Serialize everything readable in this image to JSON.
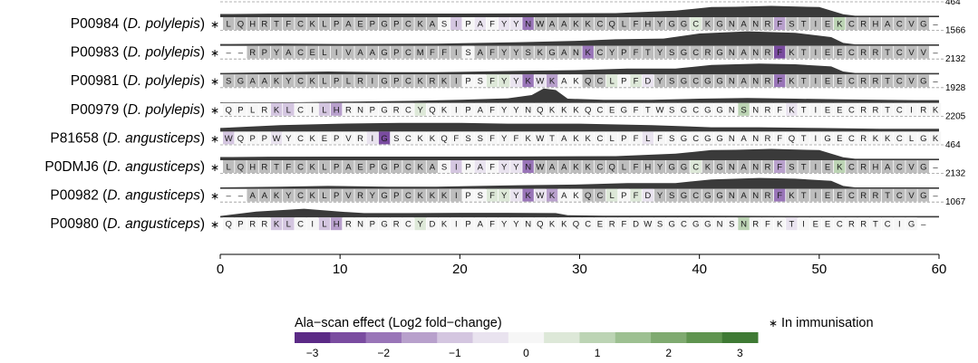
{
  "chart_data": {
    "type": "heatmap",
    "title": "",
    "xlabel": "",
    "ylabel": "",
    "xlim": [
      0,
      60
    ],
    "x_ticks": [
      "0",
      "10",
      "20",
      "30",
      "40",
      "50",
      "60"
    ],
    "rows": [
      {
        "id": "P00984",
        "species": "D. polylepis",
        "in_immunisation": true,
        "sequence": "LQHRTFCKLPAEPGPCKASIPAFYYNWAAKKCQLFHYGGCKGNANRFSTIEKCRHACVG-",
        "max_label": "464",
        "effects": [
          -0.1,
          -0.1,
          -0.1,
          -0.1,
          -0.1,
          -0.1,
          -0.1,
          -0.1,
          -0.1,
          -0.1,
          -0.1,
          -0.1,
          -0.1,
          -0.1,
          -0.1,
          -0.1,
          -0.1,
          -0.1,
          0,
          -0.8,
          0,
          -0.6,
          0,
          -0.4,
          -0.4,
          -1.8,
          -0.1,
          -0.1,
          -0.1,
          -0.1,
          -0.1,
          -0.1,
          -0.1,
          -0.1,
          -0.1,
          -0.1,
          -0.1,
          -0.1,
          -0.1,
          0.5,
          -0.1,
          -0.1,
          -0.1,
          -0.1,
          -0.1,
          -0.1,
          -1.5,
          -0.1,
          -0.1,
          -0.1,
          -0.1,
          1.1,
          -0.1,
          -0.1,
          -0.1,
          -0.1,
          -0.1,
          -0.1,
          -0.1,
          0
        ]
      },
      {
        "id": "P00983",
        "species": "D. polylepis",
        "in_immunisation": true,
        "sequence": "--RPYACELIVAAGPCMFFISAFYYSKGANKCYPFTYSGCRGNANRFKTIEECRRTCVV-",
        "max_label": "1566",
        "effects": [
          0,
          0,
          -0.1,
          -0.1,
          -0.1,
          -0.1,
          -0.1,
          -0.1,
          -0.1,
          -0.1,
          -0.1,
          -0.1,
          -0.1,
          -0.1,
          -0.1,
          -0.1,
          -0.1,
          -0.1,
          -0.1,
          -0.1,
          0,
          -0.1,
          -0.1,
          -0.1,
          -0.1,
          -0.1,
          -0.1,
          -0.1,
          -0.1,
          -0.1,
          -2.2,
          -0.1,
          -0.1,
          -0.1,
          -0.1,
          -0.1,
          -0.1,
          -0.1,
          -0.1,
          -0.1,
          -0.1,
          -0.1,
          -0.1,
          -0.1,
          -0.1,
          -0.1,
          -2.5,
          -0.1,
          -0.1,
          -0.1,
          -0.1,
          -0.1,
          -0.1,
          -0.1,
          -0.1,
          -0.1,
          -0.1,
          -0.1,
          -0.1,
          0
        ]
      },
      {
        "id": "P00981",
        "species": "D. polylepis",
        "in_immunisation": true,
        "sequence": "SGAAKYCKLPLRIGPCKRKIPSFYYKWKAKQCLPFDYSGCGGNANRFKTIEECRRTCVG-",
        "max_label": "2132",
        "effects": [
          -0.1,
          -0.1,
          -0.1,
          -0.1,
          -0.1,
          -0.1,
          -0.1,
          -0.1,
          -0.1,
          -0.1,
          -0.1,
          -0.1,
          -0.1,
          -0.1,
          -0.1,
          -0.1,
          -0.1,
          -0.1,
          -0.1,
          -0.1,
          0,
          0,
          0.5,
          0.5,
          -0.5,
          -1.8,
          -0.4,
          -1.6,
          0,
          0,
          -0.1,
          -0.1,
          0.3,
          0,
          0.4,
          -0.6,
          -0.1,
          -0.1,
          -0.1,
          -0.1,
          -0.1,
          -0.1,
          -0.1,
          -0.1,
          -0.1,
          -0.1,
          -2.0,
          -0.1,
          -0.1,
          -0.1,
          -0.1,
          -0.1,
          -0.1,
          -0.1,
          -0.1,
          -0.1,
          -0.1,
          -0.1,
          -0.1,
          0
        ]
      },
      {
        "id": "P00979",
        "species": "D. polylepis",
        "in_immunisation": true,
        "sequence": "QPLRKLCILHRNPGRCYQKIPAFYYNQKKKQCEGFTWSGCGGNSNRFKTIEECRRTCIRK",
        "max_label": "1928",
        "effects": [
          0,
          0,
          0,
          0,
          -1.0,
          -1.2,
          0,
          0,
          -1.0,
          -1.6,
          0,
          0,
          0,
          0,
          0,
          0,
          0.3,
          0,
          0,
          0,
          0,
          0,
          0,
          0,
          0,
          0,
          0,
          0,
          0,
          0,
          0,
          0,
          0,
          0,
          0,
          0,
          0,
          0,
          0,
          0,
          0,
          0,
          0,
          0.9,
          0,
          0,
          0,
          -0.7,
          0,
          0,
          0,
          0,
          0,
          0,
          0,
          0,
          0,
          0,
          0,
          0
        ]
      },
      {
        "id": "P81658",
        "species": "D. angusticeps",
        "in_immunisation": true,
        "sequence": "WQPPWYCKEPVRIGSCKKQFSSFYFKWTAKKCLPFLFSGCGGNANRFQTIGECRKKCLGK",
        "max_label": "2205",
        "effects": [
          -0.8,
          0,
          0,
          0,
          -0.4,
          -0.2,
          0,
          0,
          0,
          0,
          0,
          0,
          -0.4,
          -2.3,
          0,
          0,
          0,
          0,
          0,
          0,
          0,
          0,
          0,
          0,
          0,
          0,
          0,
          0,
          0,
          0,
          0,
          0,
          0,
          0,
          0,
          -0.3,
          0,
          0,
          0,
          0,
          0,
          0,
          0,
          0,
          0,
          0,
          0,
          0,
          0,
          0,
          0,
          0,
          0,
          0,
          0,
          0,
          0,
          0,
          0,
          0
        ]
      },
      {
        "id": "P0DMJ6",
        "species": "D. angusticeps",
        "in_immunisation": true,
        "sequence": "LQHRTFCKLPAEPGPCKASIPAFYYNWAAKKCQLFHYGGCKGNANRFSTIEKCRHACVG-",
        "max_label": "464",
        "effects": [
          -0.1,
          -0.1,
          -0.1,
          -0.1,
          -0.1,
          -0.1,
          -0.1,
          -0.1,
          -0.1,
          -0.1,
          -0.1,
          -0.1,
          -0.1,
          -0.1,
          -0.1,
          -0.1,
          -0.1,
          -0.1,
          0,
          -0.8,
          0,
          -0.6,
          0,
          -0.4,
          -0.4,
          -1.8,
          -0.1,
          -0.1,
          -0.1,
          -0.1,
          -0.1,
          -0.1,
          -0.1,
          -0.1,
          -0.1,
          -0.1,
          -0.1,
          -0.1,
          -0.1,
          0.5,
          -0.1,
          -0.1,
          -0.1,
          -0.1,
          -0.1,
          -0.1,
          -1.5,
          -0.1,
          -0.1,
          -0.1,
          -0.1,
          1.1,
          -0.1,
          -0.1,
          -0.1,
          -0.1,
          -0.1,
          -0.1,
          -0.1,
          0
        ]
      },
      {
        "id": "P00982",
        "species": "D. angusticeps",
        "in_immunisation": true,
        "sequence": "--AAKYCKLPVRYGPCKKKIPSFYYKWKAKQCLPFDYSGCGGNANRFKTIEECRRTCVG-",
        "max_label": "2132",
        "effects": [
          0,
          0,
          -0.1,
          -0.1,
          -0.1,
          -0.1,
          -0.1,
          -0.1,
          -0.1,
          -0.1,
          -0.1,
          -0.1,
          -0.1,
          -0.1,
          -0.1,
          -0.1,
          -0.1,
          -0.1,
          -0.1,
          -0.1,
          0,
          0,
          0.5,
          0.5,
          -0.5,
          -1.8,
          -0.4,
          -1.6,
          0,
          0,
          -0.1,
          -0.1,
          0.3,
          0,
          0.4,
          -0.6,
          -0.1,
          -0.1,
          -0.1,
          -0.1,
          -0.1,
          -0.1,
          -0.1,
          -0.1,
          -0.1,
          -0.1,
          -2.0,
          -0.1,
          -0.1,
          -0.1,
          -0.1,
          -0.1,
          -0.1,
          -0.1,
          -0.1,
          -0.1,
          -0.1,
          -0.1,
          -0.1,
          0
        ]
      },
      {
        "id": "P00980",
        "species": "D. angusticeps",
        "in_immunisation": true,
        "sequence": "QPRRKLCILHRNPGRCYDKIPAFYYNQKKQCERFDWSGCGGNSNRFKTIEECRRTCIG-",
        "max_label": "1067",
        "effects": [
          0,
          0,
          0,
          0,
          -1.0,
          -1.2,
          0,
          0,
          -1.0,
          -1.6,
          0,
          0,
          0,
          0,
          0,
          0,
          0.3,
          0,
          0,
          0,
          0,
          0,
          0,
          0,
          0,
          0,
          0,
          0,
          0,
          0,
          0,
          0,
          0,
          0,
          0,
          0,
          0,
          0,
          0,
          0,
          0,
          0,
          0,
          0.9,
          0,
          0,
          0,
          -0.7,
          0,
          0,
          0,
          0,
          0,
          0,
          0,
          0,
          0,
          0,
          0,
          0
        ]
      }
    ],
    "profiles": [
      {
        "row": 0,
        "points": [
          [
            0,
            0.22
          ],
          [
            1,
            0.22
          ],
          [
            4,
            0.24
          ],
          [
            10,
            0.25
          ],
          [
            18,
            0.25
          ],
          [
            25,
            0.26
          ],
          [
            33,
            0.28
          ],
          [
            38,
            0.45
          ],
          [
            41,
            0.7
          ],
          [
            43,
            0.72
          ],
          [
            46,
            0.78
          ],
          [
            50,
            0.7
          ],
          [
            52,
            0.2
          ],
          [
            53,
            0.1
          ],
          [
            60,
            0.1
          ]
        ]
      },
      {
        "row": 1,
        "points": [
          [
            0,
            0.12
          ],
          [
            5,
            0.15
          ],
          [
            10,
            0.12
          ],
          [
            18,
            0.15
          ],
          [
            25,
            0.25
          ],
          [
            30,
            0.35
          ],
          [
            33,
            0.45
          ],
          [
            37,
            0.5
          ],
          [
            40,
            0.85
          ],
          [
            44,
            1.0
          ],
          [
            48,
            0.9
          ],
          [
            51,
            0.6
          ],
          [
            52,
            0.2
          ],
          [
            53,
            0.1
          ],
          [
            60,
            0.1
          ]
        ]
      },
      {
        "row": 2,
        "points": [
          [
            0,
            0.1
          ],
          [
            5,
            0.15
          ],
          [
            9,
            0.2
          ],
          [
            14,
            0.15
          ],
          [
            18,
            0.15
          ],
          [
            25,
            0.25
          ],
          [
            30,
            0.3
          ],
          [
            34,
            0.4
          ],
          [
            38,
            0.4
          ],
          [
            41,
            0.65
          ],
          [
            45,
            0.75
          ],
          [
            48,
            0.7
          ],
          [
            51,
            0.55
          ],
          [
            52,
            0.2
          ],
          [
            53,
            0.1
          ],
          [
            60,
            0.1
          ]
        ]
      },
      {
        "row": 3,
        "points": [
          [
            0,
            0.05
          ],
          [
            6,
            0.05
          ],
          [
            11,
            0.1
          ],
          [
            16,
            0.15
          ],
          [
            20,
            0.22
          ],
          [
            24,
            0.32
          ],
          [
            26,
            0.55
          ],
          [
            27,
            1.0
          ],
          [
            28,
            0.9
          ],
          [
            29,
            0.3
          ],
          [
            32,
            0.22
          ],
          [
            36,
            0.22
          ],
          [
            40,
            0.3
          ],
          [
            44,
            0.35
          ],
          [
            48,
            0.3
          ],
          [
            52,
            0.25
          ],
          [
            58,
            0.2
          ],
          [
            60,
            0.2
          ]
        ]
      },
      {
        "row": 4,
        "points": [
          [
            0,
            0.25
          ],
          [
            5,
            0.45
          ],
          [
            10,
            0.55
          ],
          [
            15,
            0.6
          ],
          [
            20,
            0.6
          ],
          [
            24,
            0.55
          ],
          [
            30,
            0.55
          ],
          [
            36,
            0.45
          ],
          [
            41,
            0.3
          ],
          [
            45,
            0.3
          ],
          [
            50,
            0.25
          ],
          [
            55,
            0.2
          ],
          [
            60,
            0.2
          ]
        ]
      },
      {
        "row": 5,
        "points": [
          [
            0,
            0.22
          ],
          [
            1,
            0.22
          ],
          [
            4,
            0.24
          ],
          [
            10,
            0.25
          ],
          [
            18,
            0.25
          ],
          [
            25,
            0.26
          ],
          [
            33,
            0.28
          ],
          [
            38,
            0.45
          ],
          [
            41,
            0.7
          ],
          [
            43,
            0.72
          ],
          [
            46,
            0.78
          ],
          [
            50,
            0.7
          ],
          [
            52,
            0.2
          ],
          [
            53,
            0.1
          ],
          [
            60,
            0.1
          ]
        ]
      },
      {
        "row": 6,
        "points": [
          [
            0,
            0.1
          ],
          [
            5,
            0.15
          ],
          [
            9,
            0.2
          ],
          [
            14,
            0.15
          ],
          [
            18,
            0.15
          ],
          [
            25,
            0.25
          ],
          [
            30,
            0.3
          ],
          [
            34,
            0.4
          ],
          [
            38,
            0.4
          ],
          [
            41,
            0.65
          ],
          [
            45,
            0.75
          ],
          [
            48,
            0.7
          ],
          [
            51,
            0.55
          ],
          [
            52,
            0.2
          ],
          [
            53,
            0.1
          ],
          [
            60,
            0.1
          ]
        ]
      },
      {
        "row": 7,
        "points": [
          [
            0,
            0.1
          ],
          [
            3,
            0.4
          ],
          [
            7,
            0.6
          ],
          [
            10,
            0.4
          ],
          [
            12,
            0.3
          ],
          [
            16,
            0.3
          ],
          [
            20,
            0.32
          ],
          [
            24,
            0.32
          ],
          [
            28,
            0.3
          ],
          [
            29,
            0.15
          ],
          [
            32,
            0.12
          ],
          [
            40,
            0.12
          ],
          [
            48,
            0.1
          ],
          [
            52,
            0.1
          ],
          [
            60,
            0.1
          ]
        ]
      }
    ],
    "legend": {
      "title": "Ala−scan effect (Log2 fold−change)",
      "scale_min": -3,
      "scale_max": 3,
      "tick_labels": [
        "−3",
        "−2",
        "−1",
        "0",
        "1",
        "2",
        "3"
      ],
      "colors": [
        "#5b2a86",
        "#7a4ca0",
        "#9975b8",
        "#b8a0cc",
        "#d4c6e0",
        "#e9e3ef",
        "#f6f6f6",
        "#dde8d8",
        "#bcd4b4",
        "#9dc091",
        "#7faa70",
        "#5f944f",
        "#3f7a34"
      ],
      "marker_symbol": "∗",
      "marker_label": "In immunisation"
    }
  }
}
